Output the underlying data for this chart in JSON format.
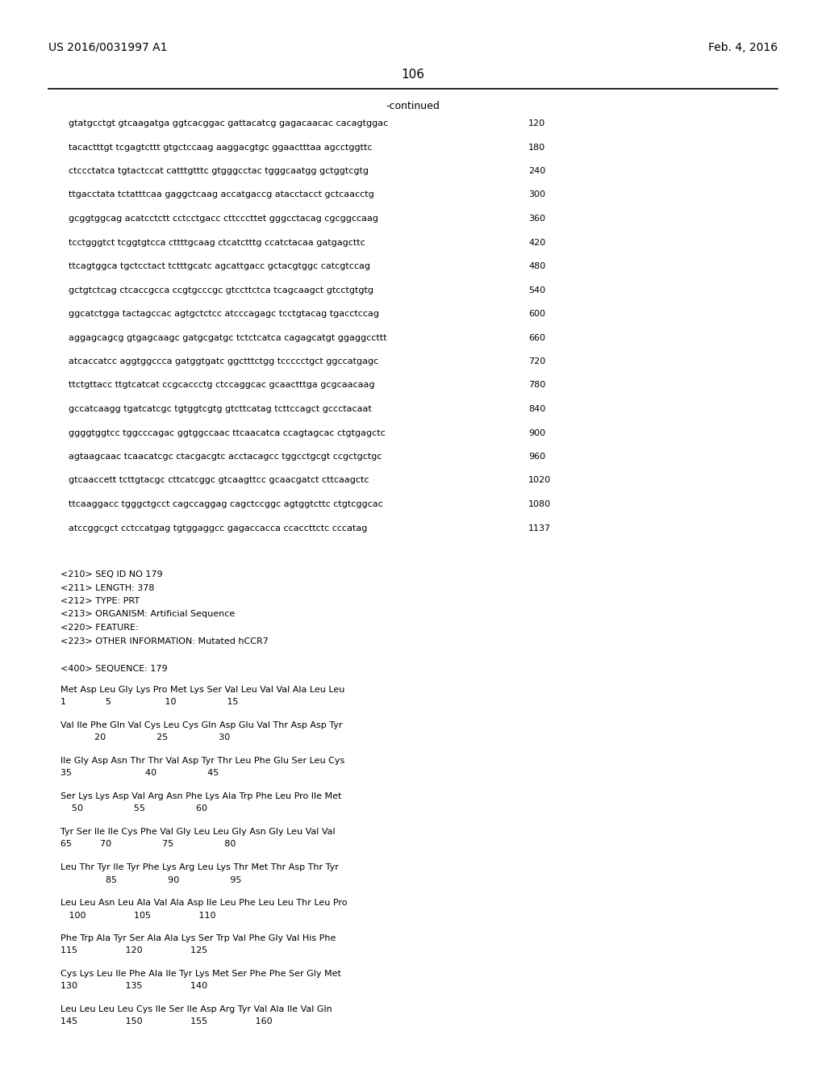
{
  "header_left": "US 2016/0031997 A1",
  "header_right": "Feb. 4, 2016",
  "page_number": "106",
  "continued_label": "-continued",
  "background_color": "#ffffff",
  "nucleotide_lines": [
    [
      "gtatgcctgt gtcaagatga ggtcacggac gattacatcg gagacaacac cacagtggac",
      "120"
    ],
    [
      "tacactttgt tcgagtcttt gtgctccaag aaggacgtgc ggaactttaa agcctggttc",
      "180"
    ],
    [
      "ctccctatca tgtactccat catttgtttc gtgggcctac tgggcaatgg gctggtcgtg",
      "240"
    ],
    [
      "ttgacctata tctatttcaa gaggctcaag accatgaccg atacctacct gctcaacctg",
      "300"
    ],
    [
      "gcggtggcag acatcctctt cctcctgacc cttcccttet gggcctacag cgcggccaag",
      "360"
    ],
    [
      "tcctgggtct tcggtgtcca cttttgcaag ctcatctttg ccatctacaa gatgagcttc",
      "420"
    ],
    [
      "ttcagtggca tgctcctact tctttgcatc agcattgacc gctacgtggc catcgtccag",
      "480"
    ],
    [
      "gctgtctcag ctcaccgcca ccgtgcccgc gtccttctca tcagcaagct gtcctgtgtg",
      "540"
    ],
    [
      "ggcatctgga tactagccac agtgctctcc atcccagagc tcctgtacag tgacctccag",
      "600"
    ],
    [
      "aggagcagcg gtgagcaagc gatgcgatgc tctctcatca cagagcatgt ggaggccttt",
      "660"
    ],
    [
      "atcaccatcc aggtggccca gatggtgatc ggctttctgg tccccctgct ggccatgagc",
      "720"
    ],
    [
      "ttctgttacc ttgtcatcat ccgcaccctg ctccaggcac gcaactttga gcgcaacaag",
      "780"
    ],
    [
      "gccatcaagg tgatcatcgc tgtggtcgtg gtcttcatag tcttccagct gccctacaat",
      "840"
    ],
    [
      "ggggtggtcc tggcccagac ggtggccaac ttcaacatca ccagtagcac ctgtgagctc",
      "900"
    ],
    [
      "agtaagcaac tcaacatcgc ctacgacgtc acctacagcc tggcctgcgt ccgctgctgc",
      "960"
    ],
    [
      "gtcaaccett tcttgtacgc cttcatcggc gtcaagttcc gcaacgatct cttcaagctc",
      "1020"
    ],
    [
      "ttcaaggacc tgggctgcct cagccaggag cagctccggc agtggtcttc ctgtcggcac",
      "1080"
    ],
    [
      "atccggcgct cctccatgag tgtggaggcc gagaccacca ccaccttctc cccatag",
      "1137"
    ]
  ],
  "metadata_lines": [
    "<210> SEQ ID NO 179",
    "<211> LENGTH: 378",
    "<212> TYPE: PRT",
    "<213> ORGANISM: Artificial Sequence",
    "<220> FEATURE:",
    "<223> OTHER INFORMATION: Mutated hCCR7"
  ],
  "sequence_label": "<400> SEQUENCE: 179",
  "protein_blocks": [
    {
      "seq": "Met Asp Leu Gly Lys Pro Met Lys Ser Val Leu Val Val Ala Leu Leu",
      "num": "1              5                   10                  15"
    },
    {
      "seq": "Val Ile Phe Gln Val Cys Leu Cys Gln Asp Glu Val Thr Asp Asp Tyr",
      "num": "            20                  25                  30"
    },
    {
      "seq": "Ile Gly Asp Asn Thr Thr Val Asp Tyr Thr Leu Phe Glu Ser Leu Cys",
      "num": "35                          40                  45"
    },
    {
      "seq": "Ser Lys Lys Asp Val Arg Asn Phe Lys Ala Trp Phe Leu Pro Ile Met",
      "num": "    50                  55                  60"
    },
    {
      "seq": "Tyr Ser Ile Ile Cys Phe Val Gly Leu Leu Gly Asn Gly Leu Val Val",
      "num": "65          70                  75                  80"
    },
    {
      "seq": "Leu Thr Tyr Ile Tyr Phe Lys Arg Leu Lys Thr Met Thr Asp Thr Tyr",
      "num": "                85                  90                  95"
    },
    {
      "seq": "Leu Leu Asn Leu Ala Val Ala Asp Ile Leu Phe Leu Leu Thr Leu Pro",
      "num": "   100                 105                 110"
    },
    {
      "seq": "Phe Trp Ala Tyr Ser Ala Ala Lys Ser Trp Val Phe Gly Val His Phe",
      "num": "115                 120                 125"
    },
    {
      "seq": "Cys Lys Leu Ile Phe Ala Ile Tyr Lys Met Ser Phe Phe Ser Gly Met",
      "num": "130                 135                 140"
    },
    {
      "seq": "Leu Leu Leu Leu Cys Ile Ser Ile Asp Arg Tyr Val Ala Ile Val Gln",
      "num": "145                 150                 155                 160"
    }
  ]
}
